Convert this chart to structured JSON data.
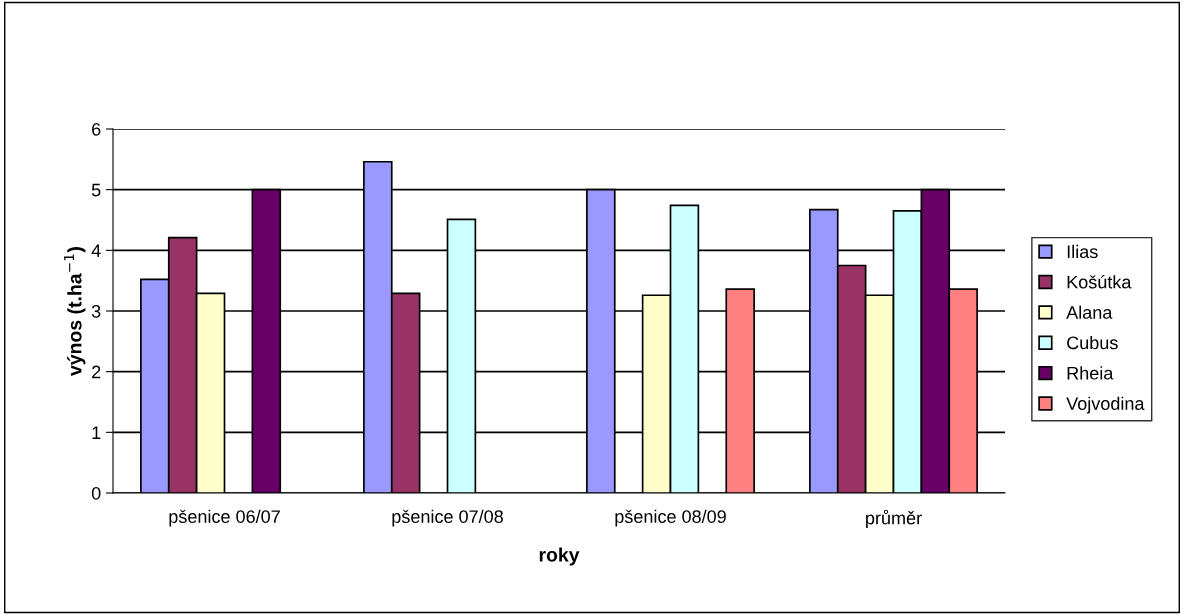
{
  "chart_data": {
    "type": "bar",
    "xlabel": "roky",
    "ylabel": "výnos (t.ha$^{−1}$)",
    "categories": [
      "pšenice 06/07",
      "pšenice 07/08",
      "pšenice 08/09",
      "průměr"
    ],
    "series": [
      {
        "name": "Ilias",
        "color": "#9999ff",
        "values": [
          3.52,
          5.46,
          5.0,
          4.67
        ]
      },
      {
        "name": "Košútka",
        "color": "#993366",
        "values": [
          4.21,
          3.29,
          null,
          3.75
        ]
      },
      {
        "name": "Alana",
        "color": "#ffffcc",
        "values": [
          3.29,
          null,
          3.26,
          3.26
        ]
      },
      {
        "name": "Cubus",
        "color": "#ccffff",
        "values": [
          null,
          4.51,
          4.74,
          4.65
        ]
      },
      {
        "name": "Rheia",
        "color": "#660066",
        "values": [
          5.0,
          null,
          null,
          5.0
        ]
      },
      {
        "name": "Vojvodina",
        "color": "#ff8080",
        "values": [
          null,
          null,
          3.36,
          3.36
        ]
      }
    ],
    "ylim": [
      0,
      6
    ],
    "yticks": [
      0,
      1,
      2,
      3,
      4,
      5,
      6
    ],
    "grid": "y",
    "legend": "right"
  }
}
